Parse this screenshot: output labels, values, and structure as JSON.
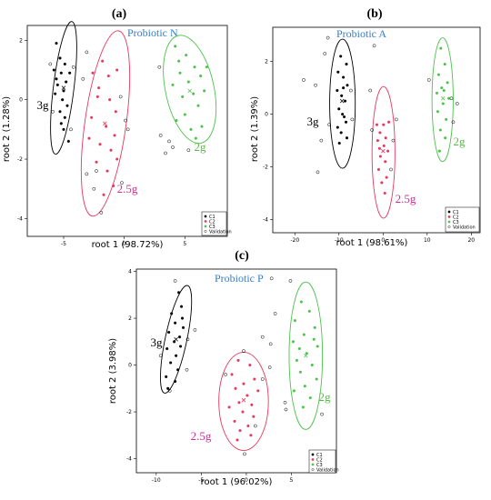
{
  "chart_data": [
    {
      "type": "scatter",
      "panel_letter": "(a)",
      "title": "Probiotic N",
      "title_color": "#2f7fd0",
      "xlabel": "root 1 (98.72%)",
      "ylabel": "root 2 (1.28%)",
      "xlim": [
        -8,
        8.5
      ],
      "ylim": [
        -4.6,
        2.5
      ],
      "x_ticks": [
        -5,
        0,
        5
      ],
      "y_ticks": [
        -4,
        -2,
        0,
        2
      ],
      "legend": {
        "entries": [
          "C1",
          "C2",
          "C3",
          "Validation"
        ],
        "placement": "bottom-right"
      },
      "groups": [
        {
          "name": "C1",
          "label": "3g",
          "color": "#000000",
          "points": [
            [
              -5.6,
              1.9
            ],
            [
              -5.3,
              1.4
            ],
            [
              -4.9,
              1.2
            ],
            [
              -5.8,
              1.0
            ],
            [
              -5.2,
              0.9
            ],
            [
              -4.8,
              0.6
            ],
            [
              -5.5,
              0.5
            ],
            [
              -5.0,
              0.3
            ],
            [
              -5.7,
              0.2
            ],
            [
              -5.1,
              0.0
            ],
            [
              -4.7,
              -0.2
            ],
            [
              -5.3,
              -0.4
            ],
            [
              -4.9,
              -0.6
            ],
            [
              -5.0,
              -1.0
            ],
            [
              -4.6,
              -1.4
            ],
            [
              -5.6,
              0.7
            ],
            [
              -4.5,
              0.9
            ],
            [
              -5.2,
              -0.8
            ]
          ],
          "centroid": [
            -5.0,
            0.4
          ],
          "ellipse": {
            "cx": -5.0,
            "cy": 0.4,
            "rx": 0.85,
            "ry": 2.25,
            "angle": 7
          }
        },
        {
          "name": "C2",
          "label": "2.5g",
          "color": "#e8385e",
          "points": [
            [
              -2.6,
              0.9
            ],
            [
              -1.8,
              1.3
            ],
            [
              -2.1,
              0.4
            ],
            [
              -1.2,
              0.0
            ],
            [
              -0.7,
              -0.4
            ],
            [
              -2.7,
              -0.6
            ],
            [
              -1.5,
              -0.9
            ],
            [
              -0.8,
              -1.2
            ],
            [
              -2.0,
              -1.5
            ],
            [
              -1.1,
              -1.7
            ],
            [
              -2.9,
              -1.3
            ],
            [
              -0.6,
              -2.0
            ],
            [
              -1.4,
              -2.4
            ],
            [
              -2.3,
              -2.1
            ],
            [
              -0.9,
              -2.9
            ],
            [
              -1.7,
              -3.2
            ],
            [
              -2.2,
              0.1
            ],
            [
              -1.3,
              0.8
            ],
            [
              -0.6,
              1.0
            ]
          ],
          "centroid": [
            -1.6,
            -0.8
          ],
          "ellipse": {
            "cx": -1.55,
            "cy": -0.8,
            "rx": 1.7,
            "ry": 3.15,
            "angle": 8
          }
        },
        {
          "name": "C3",
          "label": "2g",
          "color": "#4cc24c",
          "points": [
            [
              4.2,
              1.8
            ],
            [
              5.1,
              1.5
            ],
            [
              5.8,
              1.1
            ],
            [
              4.6,
              0.9
            ],
            [
              6.3,
              0.8
            ],
            [
              5.3,
              0.6
            ],
            [
              4.0,
              0.5
            ],
            [
              6.6,
              0.3
            ],
            [
              5.7,
              0.2
            ],
            [
              4.8,
              0.1
            ],
            [
              6.1,
              -0.2
            ],
            [
              5.0,
              -0.5
            ],
            [
              4.3,
              -0.7
            ],
            [
              6.4,
              -0.9
            ],
            [
              5.5,
              -1.0
            ],
            [
              4.5,
              1.3
            ],
            [
              6.8,
              1.1
            ],
            [
              5.9,
              -1.3
            ]
          ],
          "centroid": [
            5.4,
            0.3
          ],
          "ellipse": {
            "cx": 5.4,
            "cy": 0.35,
            "rx": 2.0,
            "ry": 1.85,
            "angle": -12
          }
        },
        {
          "name": "Validation",
          "color": "#000000",
          "points": [
            [
              -4.2,
              1.1
            ],
            [
              -6.1,
              1.2
            ],
            [
              -4.4,
              -1.0
            ],
            [
              -5.9,
              -0.4
            ],
            [
              -3.4,
              0.7
            ],
            [
              -3.1,
              1.6
            ],
            [
              -0.3,
              0.1
            ],
            [
              0.1,
              -0.7
            ],
            [
              -1.9,
              -3.8
            ],
            [
              -0.2,
              -2.8
            ],
            [
              -3.1,
              -2.5
            ],
            [
              0.3,
              -1.0
            ],
            [
              -2.3,
              -2.4
            ],
            [
              3.4,
              -1.8
            ],
            [
              4.0,
              -1.6
            ],
            [
              3.7,
              -1.4
            ],
            [
              5.3,
              -1.7
            ],
            [
              2.9,
              1.1
            ],
            [
              3.0,
              -1.2
            ],
            [
              -2.5,
              -3.0
            ]
          ]
        }
      ]
    },
    {
      "type": "scatter",
      "panel_letter": "(b)",
      "title": "Probiotic A",
      "title_color": "#2f7fd0",
      "xlabel": "root 1 (98.61%)",
      "ylabel": "root 2 (1.39%)",
      "xlim": [
        -25,
        22
      ],
      "ylim": [
        -4.5,
        3.3
      ],
      "x_ticks": [
        -20,
        -10,
        0,
        10,
        20
      ],
      "y_ticks": [
        -4,
        -2,
        0,
        2
      ],
      "legend": {
        "entries": [
          "C1",
          "C2",
          "C3",
          "Validation"
        ],
        "placement": "bottom-right"
      },
      "groups": [
        {
          "name": "C1",
          "label": "3g",
          "color": "#000000",
          "points": [
            [
              -9.6,
              2.2
            ],
            [
              -8.3,
              1.9
            ],
            [
              -10.2,
              1.6
            ],
            [
              -9.0,
              1.4
            ],
            [
              -8.1,
              1.1
            ],
            [
              -10.4,
              0.9
            ],
            [
              -9.4,
              0.7
            ],
            [
              -8.6,
              0.5
            ],
            [
              -10.0,
              0.2
            ],
            [
              -9.2,
              0.0
            ],
            [
              -8.4,
              -0.3
            ],
            [
              -10.3,
              -0.5
            ],
            [
              -9.5,
              -0.7
            ],
            [
              -8.2,
              -0.9
            ],
            [
              -9.9,
              -1.1
            ],
            [
              -9.0,
              1.0
            ],
            [
              -8.8,
              -0.1
            ]
          ],
          "centroid": [
            -9.3,
            0.5
          ],
          "ellipse": {
            "cx": -9.2,
            "cy": 0.4,
            "rx": 2.9,
            "ry": 2.45,
            "angle": 0
          }
        },
        {
          "name": "C2",
          "label": "2.5g",
          "color": "#e8385e",
          "points": [
            [
              -1.4,
              -0.4
            ],
            [
              0.1,
              -0.4
            ],
            [
              1.3,
              -0.3
            ],
            [
              -0.7,
              -0.7
            ],
            [
              0.6,
              -0.9
            ],
            [
              -1.2,
              -1.0
            ],
            [
              0.2,
              -1.2
            ],
            [
              1.1,
              -1.4
            ],
            [
              -0.6,
              -1.6
            ],
            [
              0.5,
              -1.8
            ],
            [
              -1.0,
              -2.1
            ],
            [
              0.8,
              -2.4
            ],
            [
              -0.3,
              -2.6
            ],
            [
              0.4,
              -3.0
            ],
            [
              -0.8,
              -1.3
            ]
          ],
          "centroid": [
            0.0,
            -1.4
          ],
          "ellipse": {
            "cx": 0.1,
            "cy": -1.45,
            "rx": 2.6,
            "ry": 2.5,
            "angle": 0
          }
        },
        {
          "name": "C3",
          "label": "2g",
          "color": "#4cc24c",
          "points": [
            [
              13.1,
              2.5
            ],
            [
              14.0,
              1.9
            ],
            [
              12.6,
              1.5
            ],
            [
              14.6,
              1.2
            ],
            [
              13.3,
              1.0
            ],
            [
              12.2,
              0.8
            ],
            [
              14.9,
              0.6
            ],
            [
              13.6,
              0.4
            ],
            [
              12.4,
              0.1
            ],
            [
              14.3,
              -0.2
            ],
            [
              13.0,
              -0.6
            ],
            [
              14.1,
              -0.9
            ],
            [
              12.8,
              -1.4
            ],
            [
              13.8,
              0.9
            ]
          ],
          "centroid": [
            13.6,
            0.6
          ],
          "ellipse": {
            "cx": 13.5,
            "cy": 0.55,
            "rx": 2.4,
            "ry": 2.35,
            "angle": 0
          }
        },
        {
          "name": "Validation",
          "color": "#000000",
          "points": [
            [
              -12.5,
              2.9
            ],
            [
              -13.2,
              2.3
            ],
            [
              -15.3,
              1.1
            ],
            [
              -18.0,
              1.3
            ],
            [
              -14.0,
              -1.0
            ],
            [
              -14.8,
              -2.2
            ],
            [
              -12.2,
              -0.4
            ],
            [
              -7.3,
              0.9
            ],
            [
              -7.0,
              -0.2
            ],
            [
              -2.0,
              2.6
            ],
            [
              -2.9,
              0.9
            ],
            [
              3.0,
              -0.2
            ],
            [
              2.3,
              -1.0
            ],
            [
              1.8,
              -2.1
            ],
            [
              -2.5,
              -0.6
            ],
            [
              10.4,
              1.3
            ],
            [
              16.8,
              0.4
            ],
            [
              15.9,
              -0.3
            ],
            [
              15.5,
              0.6
            ]
          ]
        }
      ]
    },
    {
      "type": "scatter",
      "panel_letter": "(c)",
      "title": "Probiotic P",
      "title_color": "#2f7fd0",
      "xlabel": "root 1 (96.02%)",
      "ylabel": "root 2 (3.98%)",
      "xlim": [
        -12.2,
        10
      ],
      "ylim": [
        -4.6,
        4.1
      ],
      "x_ticks": [
        -10,
        -5,
        0,
        5
      ],
      "y_ticks": [
        -4,
        -2,
        0,
        2,
        4
      ],
      "legend": {
        "entries": [
          "C1",
          "C2",
          "C3",
          "Validation"
        ],
        "placement": "bottom-right"
      },
      "groups": [
        {
          "name": "C1",
          "label": "3g",
          "color": "#000000",
          "points": [
            [
              -7.5,
              3.1
            ],
            [
              -7.2,
              2.5
            ],
            [
              -8.3,
              2.2
            ],
            [
              -7.9,
              1.8
            ],
            [
              -7.0,
              1.6
            ],
            [
              -8.6,
              1.4
            ],
            [
              -7.4,
              1.2
            ],
            [
              -8.0,
              1.0
            ],
            [
              -7.3,
              0.8
            ],
            [
              -8.8,
              0.7
            ],
            [
              -7.8,
              0.4
            ],
            [
              -8.4,
              0.1
            ],
            [
              -7.6,
              -0.2
            ],
            [
              -8.9,
              -0.5
            ],
            [
              -7.9,
              -0.7
            ],
            [
              -8.7,
              -1.0
            ],
            [
              -7.1,
              2.0
            ]
          ],
          "centroid": [
            -7.8,
            1.1
          ],
          "ellipse": {
            "cx": -7.8,
            "cy": 1.1,
            "rx": 1.2,
            "ry": 2.35,
            "angle": 12
          }
        },
        {
          "name": "C2",
          "label": "2.5g",
          "color": "#e8385e",
          "points": [
            [
              -0.9,
              0.2
            ],
            [
              0.4,
              0.0
            ],
            [
              -1.6,
              -0.4
            ],
            [
              0.9,
              -0.6
            ],
            [
              -0.3,
              -0.8
            ],
            [
              -1.2,
              -1.0
            ],
            [
              1.3,
              -1.1
            ],
            [
              0.1,
              -1.3
            ],
            [
              -0.8,
              -1.6
            ],
            [
              0.6,
              -1.7
            ],
            [
              -1.9,
              -1.8
            ],
            [
              -0.4,
              -2.0
            ],
            [
              0.8,
              -2.2
            ],
            [
              -1.3,
              -2.4
            ],
            [
              0.2,
              -2.6
            ],
            [
              -0.7,
              -2.8
            ],
            [
              0.5,
              -3.0
            ],
            [
              -1.0,
              -3.2
            ]
          ],
          "centroid": [
            -0.3,
            -1.5
          ],
          "ellipse": {
            "cx": -0.3,
            "cy": -1.55,
            "rx": 2.75,
            "ry": 2.1,
            "angle": 0
          }
        },
        {
          "name": "C3",
          "label": "2g",
          "color": "#4cc24c",
          "points": [
            [
              6.1,
              2.7
            ],
            [
              7.0,
              2.3
            ],
            [
              5.4,
              1.9
            ],
            [
              7.6,
              1.6
            ],
            [
              6.4,
              1.3
            ],
            [
              5.2,
              1.0
            ],
            [
              7.9,
              0.8
            ],
            [
              6.7,
              0.5
            ],
            [
              5.6,
              0.2
            ],
            [
              7.3,
              0.0
            ],
            [
              6.0,
              -0.3
            ],
            [
              7.8,
              -0.6
            ],
            [
              6.5,
              -0.9
            ],
            [
              5.3,
              -1.1
            ],
            [
              7.1,
              -1.4
            ],
            [
              6.3,
              -1.8
            ],
            [
              5.9,
              0.7
            ],
            [
              7.5,
              1.1
            ]
          ],
          "centroid": [
            6.6,
            0.4
          ],
          "ellipse": {
            "cx": 6.6,
            "cy": 0.4,
            "rx": 1.85,
            "ry": 3.15,
            "angle": 0
          }
        },
        {
          "name": "Validation",
          "color": "#000000",
          "points": [
            [
              -7.9,
              3.6
            ],
            [
              -5.7,
              1.5
            ],
            [
              -6.5,
              1.1
            ],
            [
              -9.5,
              0.4
            ],
            [
              -6.6,
              -0.2
            ],
            [
              -8.5,
              -1.1
            ],
            [
              -0.3,
              0.6
            ],
            [
              1.8,
              -0.6
            ],
            [
              -2.3,
              -0.4
            ],
            [
              1.0,
              -2.6
            ],
            [
              -0.2,
              -3.8
            ],
            [
              4.3,
              -1.6
            ],
            [
              2.7,
              0.9
            ],
            [
              1.8,
              1.2
            ],
            [
              3.2,
              2.2
            ],
            [
              2.8,
              3.7
            ],
            [
              4.9,
              3.6
            ],
            [
              4.4,
              -1.9
            ],
            [
              8.4,
              -2.1
            ],
            [
              2.6,
              -0.1
            ]
          ]
        }
      ]
    }
  ]
}
